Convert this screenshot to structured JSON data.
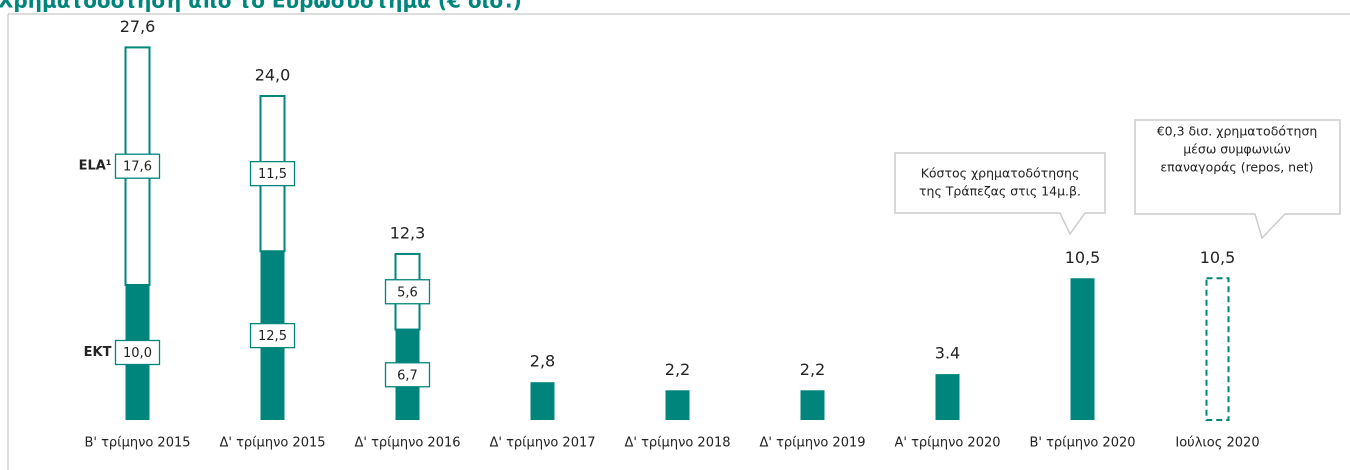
{
  "chart_data": {
    "type": "stacked_bar",
    "title": "Χρηματοδότηση από το Ευρωσύστημα (€ δισ.)",
    "categories": [
      "Β' τρίμηνο 2015",
      "Δ' τρίμηνο 2015",
      "Δ' τρίμηνο 2016",
      "Δ' τρίμηνο 2017",
      "Δ' τρίμηνο 2018",
      "Δ' τρίμηνο 2019",
      "Α' τρίμηνο 2020",
      "Β' τρίμηνο 2020",
      "Ιούλιος 2020"
    ],
    "series": [
      {
        "name": "ΕΚΤ",
        "color": "#00857c",
        "values": [
          10.0,
          12.5,
          6.7,
          2.8,
          2.2,
          2.2,
          3.4,
          10.5,
          10.5
        ],
        "value_labels": [
          "10,0",
          "12,5",
          "6,7",
          null,
          null,
          null,
          null,
          null,
          null
        ],
        "dashed": [
          false,
          false,
          false,
          false,
          false,
          false,
          false,
          false,
          true
        ]
      },
      {
        "name": "ELA¹",
        "color": "#ffffff",
        "edge": "#00857c",
        "values": [
          17.6,
          11.5,
          5.6,
          null,
          null,
          null,
          null,
          null,
          null
        ],
        "value_labels": [
          "17,6",
          "11,5",
          "5,6",
          null,
          null,
          null,
          null,
          null,
          null
        ]
      }
    ],
    "totals": [
      27.6,
      24.0,
      12.3,
      2.8,
      2.2,
      2.2,
      3.4,
      10.5,
      10.5
    ],
    "total_labels": [
      "27,6",
      "24,0",
      "12,3",
      "2,8",
      "2,2",
      "2,2",
      "3.4",
      "10,5",
      "10,5"
    ],
    "ylim": [
      0,
      28
    ],
    "annotations": [
      {
        "lines": [
          "Κόστος χρηματοδότησης",
          "της Τράπεζας στις 14μ.β."
        ]
      },
      {
        "lines": [
          "€0,3 δισ. χρηματοδότηση",
          "μέσω συμφωνιών",
          "επαναγοράς (repos, net)"
        ]
      }
    ]
  }
}
